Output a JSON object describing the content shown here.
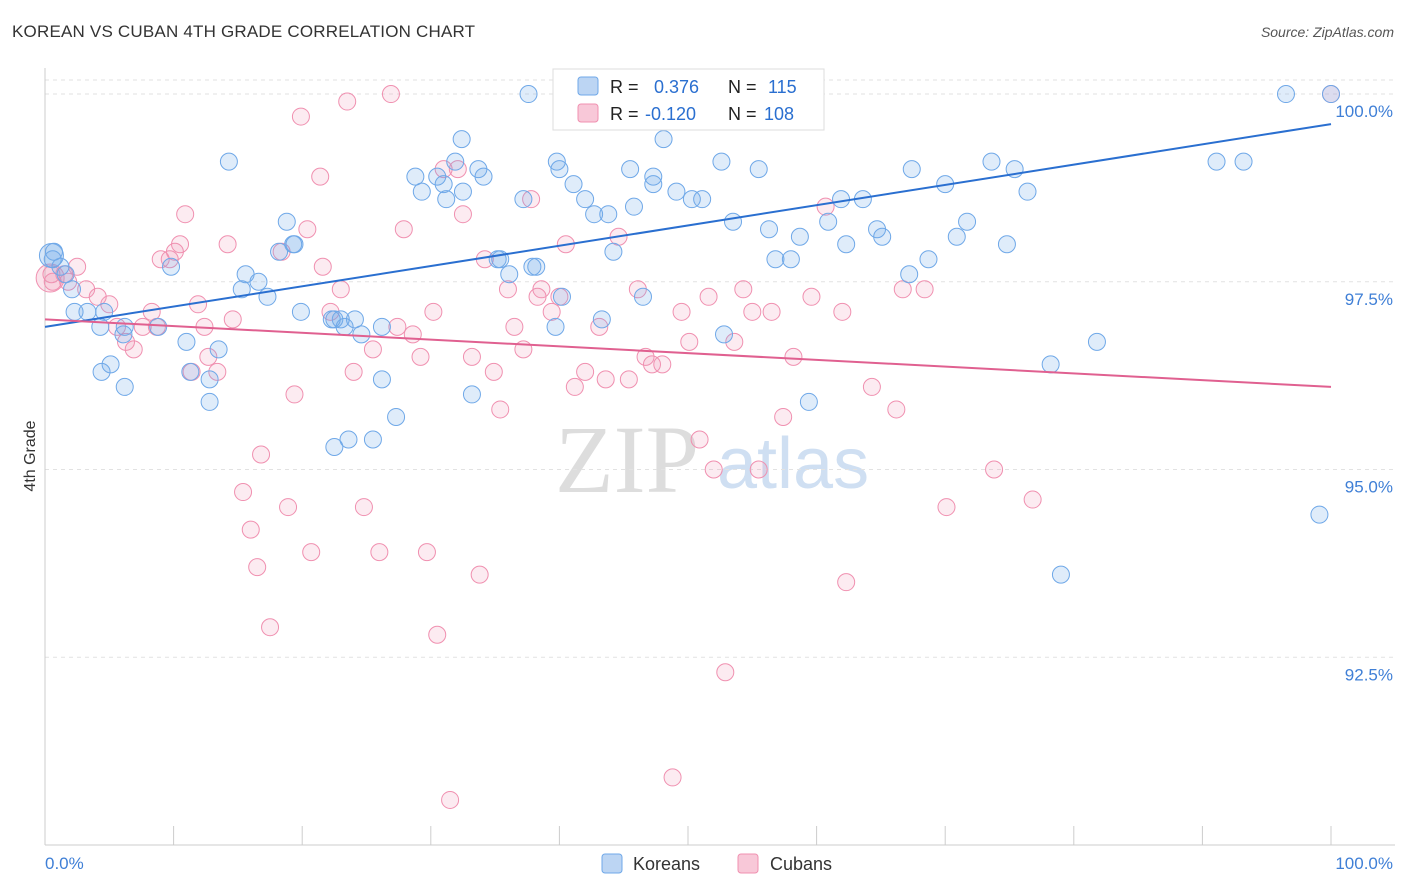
{
  "title": "KOREAN VS CUBAN 4TH GRADE CORRELATION CHART",
  "source": "Source: ZipAtlas.com",
  "watermark": {
    "part1": "ZIP",
    "part2": "atlas"
  },
  "legend_box": {
    "rows": [
      {
        "r_label": "R =",
        "r_value": "0.376",
        "n_label": "N =",
        "n_value": "115",
        "color": "#6fa8e8"
      },
      {
        "r_label": "R =",
        "r_value": "-0.120",
        "n_label": "N =",
        "n_value": "108",
        "color": "#f090b0"
      }
    ]
  },
  "chart_data": {
    "type": "scatter",
    "title": "KOREAN VS CUBAN 4TH GRADE CORRELATION CHART",
    "xlabel": "",
    "ylabel": "4th Grade",
    "xlim": [
      0,
      100
    ],
    "ylim": [
      90.0,
      100.4
    ],
    "x_tick_labels": [
      "0.0%",
      "100.0%"
    ],
    "y_ticks": [
      92.5,
      95.0,
      97.5,
      100.0
    ],
    "y_tick_labels": [
      "92.5%",
      "95.0%",
      "97.5%",
      "100.0%"
    ],
    "grid": true,
    "legend_placement": "bottom-center",
    "series": [
      {
        "name": "Koreans",
        "color": "#6fa8e8",
        "line_color": "#2a6fd0",
        "trend": {
          "x": [
            0,
            100
          ],
          "y": [
            96.9,
            99.6
          ]
        },
        "points": [
          [
            0.7,
            97.9
          ],
          [
            0.6,
            97.8
          ],
          [
            1.6,
            97.6
          ],
          [
            1.2,
            97.7
          ],
          [
            2.1,
            97.4
          ],
          [
            2.3,
            97.1
          ],
          [
            4.6,
            97.1
          ],
          [
            4.3,
            96.9
          ],
          [
            6.2,
            96.9
          ],
          [
            6.1,
            96.8
          ],
          [
            8.8,
            96.9
          ],
          [
            3.3,
            97.1
          ],
          [
            4.4,
            96.3
          ],
          [
            5.1,
            96.4
          ],
          [
            6.2,
            96.1
          ],
          [
            9.8,
            97.7
          ],
          [
            11.0,
            96.7
          ],
          [
            11.3,
            96.3
          ],
          [
            13.5,
            96.6
          ],
          [
            12.8,
            96.2
          ],
          [
            12.8,
            95.9
          ],
          [
            14.3,
            99.1
          ],
          [
            15.6,
            97.6
          ],
          [
            15.3,
            97.4
          ],
          [
            16.6,
            97.5
          ],
          [
            17.3,
            97.3
          ],
          [
            18.2,
            97.9
          ],
          [
            18.8,
            98.3
          ],
          [
            19.4,
            98.0
          ],
          [
            19.3,
            98.0
          ],
          [
            19.9,
            97.1
          ],
          [
            22.3,
            97.0
          ],
          [
            22.5,
            97.0
          ],
          [
            23.0,
            97.0
          ],
          [
            23.3,
            96.9
          ],
          [
            24.1,
            97.0
          ],
          [
            24.6,
            96.8
          ],
          [
            22.5,
            95.3
          ],
          [
            23.6,
            95.4
          ],
          [
            25.5,
            95.4
          ],
          [
            27.3,
            95.7
          ],
          [
            26.2,
            96.9
          ],
          [
            26.2,
            96.2
          ],
          [
            28.8,
            98.9
          ],
          [
            30.5,
            98.9
          ],
          [
            31.2,
            98.6
          ],
          [
            29.3,
            98.7
          ],
          [
            32.5,
            98.7
          ],
          [
            32.4,
            99.4
          ],
          [
            31.9,
            99.1
          ],
          [
            31.0,
            98.8
          ],
          [
            33.7,
            99.0
          ],
          [
            34.1,
            98.9
          ],
          [
            35.2,
            97.8
          ],
          [
            33.2,
            96.0
          ],
          [
            35.4,
            97.8
          ],
          [
            36.1,
            97.6
          ],
          [
            37.2,
            98.6
          ],
          [
            37.6,
            100.0
          ],
          [
            38.2,
            97.7
          ],
          [
            37.9,
            97.7
          ],
          [
            39.8,
            99.1
          ],
          [
            39.7,
            96.9
          ],
          [
            40.0,
            99.0
          ],
          [
            40.2,
            97.3
          ],
          [
            41.1,
            98.8
          ],
          [
            42.0,
            98.6
          ],
          [
            42.7,
            98.4
          ],
          [
            43.3,
            97.0
          ],
          [
            43.8,
            98.4
          ],
          [
            44.2,
            97.9
          ],
          [
            45.8,
            98.5
          ],
          [
            46.5,
            97.3
          ],
          [
            47.3,
            98.8
          ],
          [
            47.3,
            98.9
          ],
          [
            45.5,
            99.0
          ],
          [
            48.4,
            100.0
          ],
          [
            48.1,
            99.4
          ],
          [
            49.1,
            98.7
          ],
          [
            50.3,
            98.6
          ],
          [
            51.1,
            98.6
          ],
          [
            52.6,
            99.1
          ],
          [
            52.8,
            100.0
          ],
          [
            52.8,
            96.8
          ],
          [
            53.5,
            98.3
          ],
          [
            55.5,
            99.0
          ],
          [
            56.3,
            98.2
          ],
          [
            56.8,
            97.8
          ],
          [
            58.0,
            97.8
          ],
          [
            58.7,
            98.1
          ],
          [
            59.4,
            95.9
          ],
          [
            60.9,
            98.3
          ],
          [
            61.9,
            98.6
          ],
          [
            62.3,
            98.0
          ],
          [
            63.6,
            98.6
          ],
          [
            64.7,
            98.2
          ],
          [
            65.1,
            98.1
          ],
          [
            67.4,
            99.0
          ],
          [
            67.2,
            97.6
          ],
          [
            68.7,
            97.8
          ],
          [
            70.0,
            98.8
          ],
          [
            70.9,
            98.1
          ],
          [
            71.7,
            98.3
          ],
          [
            73.6,
            99.1
          ],
          [
            74.8,
            98.0
          ],
          [
            75.4,
            99.0
          ],
          [
            76.4,
            98.7
          ],
          [
            78.2,
            96.4
          ],
          [
            79.0,
            93.6
          ],
          [
            81.8,
            96.7
          ],
          [
            91.1,
            99.1
          ],
          [
            93.2,
            99.1
          ],
          [
            96.5,
            100.0
          ],
          [
            99.1,
            94.4
          ],
          [
            100.0,
            100.0
          ]
        ]
      },
      {
        "name": "Cubans",
        "color": "#f090b0",
        "line_color": "#e06090",
        "trend": {
          "x": [
            0,
            100
          ],
          "y": [
            97.0,
            96.1
          ]
        },
        "points": [
          [
            0.5,
            97.6
          ],
          [
            0.6,
            97.5
          ],
          [
            1.5,
            97.6
          ],
          [
            1.8,
            97.5
          ],
          [
            2.5,
            97.7
          ],
          [
            3.2,
            97.4
          ],
          [
            4.1,
            97.3
          ],
          [
            5.0,
            97.2
          ],
          [
            5.6,
            96.9
          ],
          [
            6.3,
            96.7
          ],
          [
            6.9,
            96.6
          ],
          [
            7.6,
            96.9
          ],
          [
            8.3,
            97.1
          ],
          [
            8.7,
            96.9
          ],
          [
            9.0,
            97.8
          ],
          [
            9.7,
            97.8
          ],
          [
            10.1,
            97.9
          ],
          [
            10.5,
            98.0
          ],
          [
            10.9,
            98.4
          ],
          [
            11.4,
            96.3
          ],
          [
            11.9,
            97.2
          ],
          [
            12.4,
            96.9
          ],
          [
            12.7,
            96.5
          ],
          [
            13.4,
            96.3
          ],
          [
            14.2,
            98.0
          ],
          [
            14.6,
            97.0
          ],
          [
            15.4,
            94.7
          ],
          [
            16.0,
            94.2
          ],
          [
            16.5,
            93.7
          ],
          [
            16.8,
            95.2
          ],
          [
            17.5,
            92.9
          ],
          [
            18.4,
            97.9
          ],
          [
            18.9,
            94.5
          ],
          [
            19.4,
            96.0
          ],
          [
            19.9,
            99.7
          ],
          [
            20.4,
            98.2
          ],
          [
            20.7,
            93.9
          ],
          [
            21.4,
            98.9
          ],
          [
            21.6,
            97.7
          ],
          [
            22.2,
            97.1
          ],
          [
            23.0,
            97.4
          ],
          [
            23.5,
            99.9
          ],
          [
            24.0,
            96.3
          ],
          [
            24.8,
            94.5
          ],
          [
            25.5,
            96.6
          ],
          [
            26.0,
            93.9
          ],
          [
            26.9,
            100.0
          ],
          [
            27.4,
            96.9
          ],
          [
            27.9,
            98.2
          ],
          [
            28.6,
            96.8
          ],
          [
            29.2,
            96.5
          ],
          [
            29.7,
            93.9
          ],
          [
            30.2,
            97.1
          ],
          [
            30.5,
            92.8
          ],
          [
            31.0,
            99.0
          ],
          [
            31.5,
            90.6
          ],
          [
            32.1,
            99.0
          ],
          [
            32.5,
            98.4
          ],
          [
            33.2,
            96.5
          ],
          [
            33.8,
            93.6
          ],
          [
            34.2,
            97.8
          ],
          [
            34.9,
            96.3
          ],
          [
            35.4,
            95.8
          ],
          [
            36.0,
            97.4
          ],
          [
            36.5,
            96.9
          ],
          [
            37.2,
            96.6
          ],
          [
            37.8,
            98.6
          ],
          [
            38.3,
            97.3
          ],
          [
            38.6,
            97.4
          ],
          [
            39.4,
            97.1
          ],
          [
            40.0,
            97.3
          ],
          [
            40.5,
            98.0
          ],
          [
            41.2,
            96.1
          ],
          [
            42.0,
            96.3
          ],
          [
            43.1,
            96.9
          ],
          [
            43.6,
            96.2
          ],
          [
            44.6,
            98.1
          ],
          [
            45.4,
            96.2
          ],
          [
            46.1,
            97.4
          ],
          [
            46.7,
            96.5
          ],
          [
            47.2,
            96.4
          ],
          [
            48.0,
            96.4
          ],
          [
            48.8,
            90.9
          ],
          [
            49.5,
            97.1
          ],
          [
            50.1,
            96.7
          ],
          [
            50.9,
            95.4
          ],
          [
            51.6,
            97.3
          ],
          [
            52.0,
            95.0
          ],
          [
            52.9,
            92.3
          ],
          [
            53.6,
            96.7
          ],
          [
            54.3,
            97.4
          ],
          [
            55.0,
            97.1
          ],
          [
            55.5,
            95.0
          ],
          [
            56.5,
            97.1
          ],
          [
            57.4,
            95.7
          ],
          [
            58.2,
            96.5
          ],
          [
            59.6,
            97.3
          ],
          [
            60.7,
            98.5
          ],
          [
            62.0,
            97.1
          ],
          [
            62.3,
            93.5
          ],
          [
            64.3,
            96.1
          ],
          [
            66.2,
            95.8
          ],
          [
            66.7,
            97.4
          ],
          [
            68.4,
            97.4
          ],
          [
            70.1,
            94.5
          ],
          [
            73.8,
            95.0
          ],
          [
            76.8,
            94.6
          ],
          [
            100.0,
            100.0
          ]
        ]
      }
    ]
  }
}
